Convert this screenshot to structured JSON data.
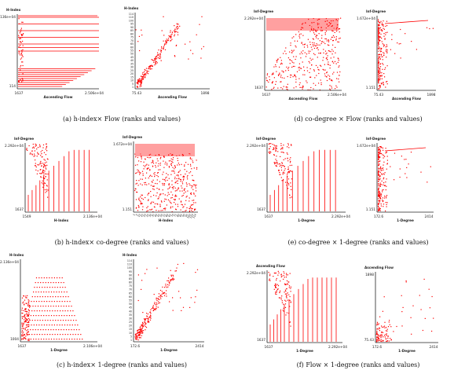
{
  "colors": {
    "points": "#ff0000",
    "axis": "#222222",
    "caption": "#111111"
  },
  "chart_data": [
    {
      "type": "scatter",
      "panel": "a",
      "position": "left",
      "ylabel": "H-Index",
      "xlabel": "Ascending Flow",
      "x_tick_labels": [
        "1637",
        "2.506e+04"
      ],
      "y_tick_labels": [
        "2.136e+04",
        "114"
      ],
      "caption": "(a) h-index× Flow (ranks and values)"
    },
    {
      "type": "scatter",
      "panel": "a",
      "position": "right",
      "ylabel": "H-Index",
      "xlabel": "Ascending Flow",
      "x_tick_labels": [
        "75.43",
        "1898"
      ],
      "y_tick_labels": [
        "114",
        "110",
        "100",
        "95",
        "90",
        "85",
        "80",
        "75",
        "70",
        "65",
        "60",
        "55",
        "50",
        "45",
        "40",
        "35",
        "30",
        "25",
        "20",
        "15",
        "10",
        "5",
        "1"
      ]
    },
    {
      "type": "scatter",
      "panel": "d",
      "position": "left",
      "ylabel": "Inf-Degree",
      "xlabel": "Ascending Flow",
      "x_tick_labels": [
        "1637",
        "2.506e+04"
      ],
      "y_tick_labels": [
        "2.292e+04",
        "1637"
      ],
      "caption": "(d) co-degree × Flow (ranks and values)"
    },
    {
      "type": "scatter",
      "panel": "d",
      "position": "right",
      "ylabel": "Inf-Degree",
      "xlabel": "Ascending Flow",
      "x_tick_labels": [
        "75.43",
        "1898"
      ],
      "y_tick_labels": [
        "1.672e+04",
        "1.151"
      ]
    },
    {
      "type": "scatter",
      "panel": "b",
      "position": "left",
      "ylabel": "Inf-Degree",
      "xlabel": "H-Index",
      "x_tick_labels": [
        "1549",
        "2.136e+04"
      ],
      "y_tick_labels": [
        "2.292e+04",
        "1637"
      ],
      "caption": "(b) h-index× co-degree (ranks and values)"
    },
    {
      "type": "scatter",
      "panel": "b",
      "position": "right",
      "ylabel": "Inf-Degree",
      "xlabel": "H-Index",
      "x_tick_labels": [
        "1",
        "5",
        "10",
        "15",
        "20",
        "25",
        "30",
        "35",
        "40",
        "45",
        "50",
        "55",
        "60",
        "65",
        "70",
        "75",
        "80",
        "85",
        "90",
        "95",
        "100",
        "110",
        "114"
      ],
      "y_tick_labels": [
        "1.672e+04",
        "1.151"
      ]
    },
    {
      "type": "scatter",
      "panel": "e",
      "position": "left",
      "ylabel": "Inf-Degree",
      "xlabel": "1-Degree",
      "x_tick_labels": [
        "1637",
        "2.292e+04"
      ],
      "y_tick_labels": [
        "2.292e+04",
        "1637"
      ],
      "caption": "(e) co-degree × 1-degree (ranks and values)"
    },
    {
      "type": "scatter",
      "panel": "e",
      "position": "right",
      "ylabel": "Inf-Degree",
      "xlabel": "1-Degree",
      "x_tick_labels": [
        "172.6",
        "2414"
      ],
      "y_tick_labels": [
        "1.672e+04",
        "1.151"
      ]
    },
    {
      "type": "scatter",
      "panel": "c",
      "position": "left",
      "ylabel": "H-Index",
      "xlabel": "1-Degree",
      "x_tick_labels": [
        "1637",
        "2.106e+04"
      ],
      "y_tick_labels": [
        "2.136e+04",
        "1004"
      ],
      "caption": "(c) h-index× 1-degree (ranks and values)"
    },
    {
      "type": "scatter",
      "panel": "c",
      "position": "right",
      "ylabel": "H-Index",
      "xlabel": "1-Degree",
      "x_tick_labels": [
        "172.6",
        "2414"
      ],
      "y_tick_labels": [
        "114",
        "110",
        "100",
        "95",
        "90",
        "85",
        "80",
        "75",
        "70",
        "65",
        "60",
        "55",
        "50",
        "45",
        "40",
        "35",
        "30",
        "25",
        "20",
        "15",
        "10",
        "5",
        "1"
      ]
    },
    {
      "type": "scatter",
      "panel": "f",
      "position": "left",
      "ylabel": "Ascending Flow",
      "xlabel": "1-Degree",
      "x_tick_labels": [
        "1637",
        "2.292e+04"
      ],
      "y_tick_labels": [
        "2.292e+04",
        "1637"
      ],
      "caption": "(f) Flow × 1-degree (ranks and values)"
    },
    {
      "type": "scatter",
      "panel": "f",
      "position": "right",
      "ylabel": "Ascending Flow",
      "xlabel": "1-Degree",
      "x_tick_labels": [
        "172.6",
        "2414"
      ],
      "y_tick_labels": [
        "1898",
        "75.43"
      ]
    }
  ]
}
